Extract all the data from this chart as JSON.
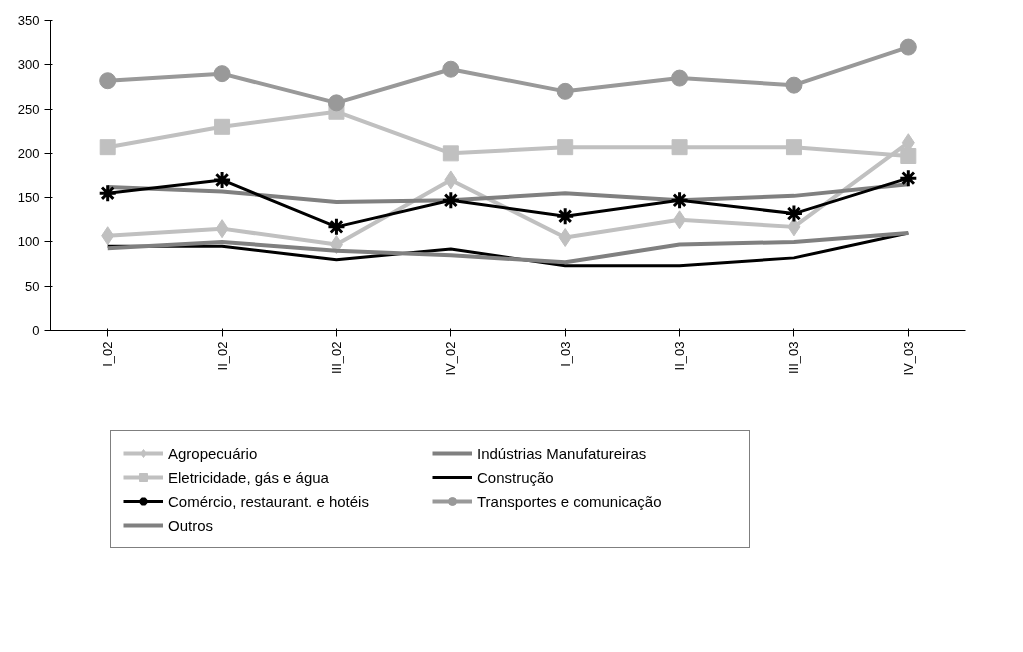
{
  "chart_data": {
    "type": "line",
    "categories": [
      "I_02",
      "II_02",
      "III_02",
      "IV_02",
      "I_03",
      "II_03",
      "III_03",
      "IV_03"
    ],
    "ylim": [
      0,
      350
    ],
    "yticks": [
      0,
      50,
      100,
      150,
      200,
      250,
      300,
      350
    ],
    "grid": false,
    "legend": "bottom",
    "series": [
      {
        "name": "Agropecuário",
        "color": "#c0c0c0",
        "marker": "diamond",
        "values": [
          107,
          115,
          97,
          170,
          105,
          125,
          117,
          212
        ]
      },
      {
        "name": "Indústrias Manufatureiras",
        "color": "#808080",
        "marker": "none",
        "values": [
          162,
          157,
          145,
          147,
          155,
          147,
          152,
          165
        ]
      },
      {
        "name": "Eletricidade, gás e água",
        "color": "#c0c0c0",
        "marker": "square",
        "values": [
          207,
          230,
          247,
          200,
          207,
          207,
          207,
          197
        ]
      },
      {
        "name": "Construção",
        "color": "#000000",
        "marker": "none",
        "values": [
          95,
          95,
          80,
          92,
          73,
          73,
          82,
          110
        ]
      },
      {
        "name": "Comércio, restaurant. e hotéis",
        "color": "#000000",
        "marker": "cross",
        "values": [
          155,
          170,
          117,
          147,
          129,
          147,
          132,
          172
        ]
      },
      {
        "name": "Transportes e comunicação",
        "color": "#999999",
        "marker": "circle",
        "values": [
          282,
          290,
          257,
          295,
          270,
          285,
          277,
          320
        ]
      },
      {
        "name": "Outros",
        "color": "#808080",
        "marker": "none",
        "values": [
          93,
          100,
          90,
          85,
          77,
          97,
          100,
          110
        ]
      }
    ]
  }
}
